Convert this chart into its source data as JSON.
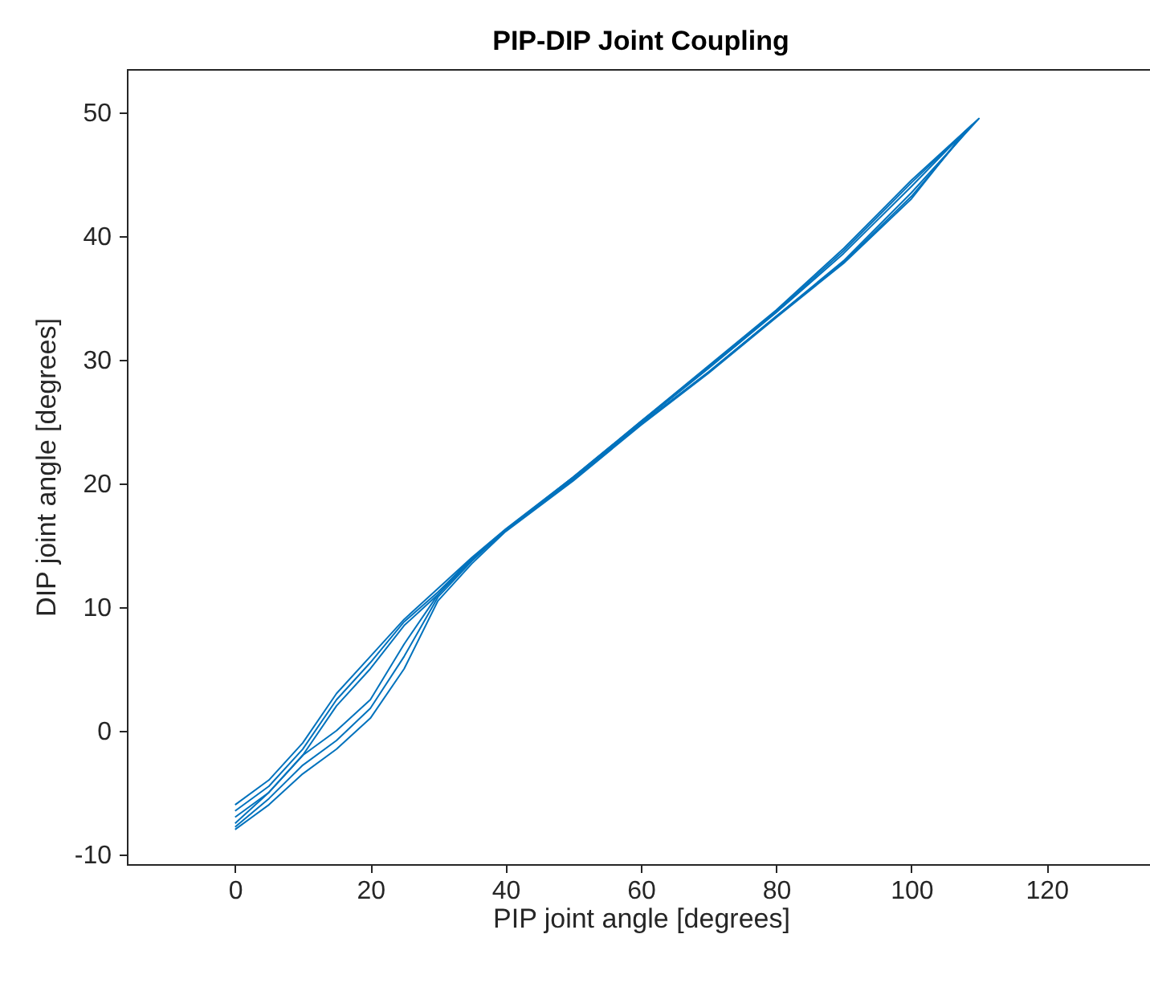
{
  "chart_data": {
    "type": "line",
    "title": "PIP-DIP Joint Coupling",
    "xlabel": "PIP joint angle [degrees]",
    "ylabel": "DIP joint angle [degrees]",
    "xlim": [
      -16,
      136
    ],
    "ylim": [
      -10.8,
      53.5
    ],
    "xticks": [
      0,
      20,
      40,
      60,
      80,
      100,
      120
    ],
    "yticks": [
      -10,
      0,
      10,
      20,
      30,
      40,
      50
    ],
    "grid": false,
    "legend": false,
    "marker": "none",
    "line_style": "solid",
    "series": [
      {
        "color": "#0072bd",
        "x": [
          0,
          5,
          10,
          15,
          20,
          25,
          30,
          35,
          40,
          50,
          60,
          70,
          80,
          90,
          100,
          110,
          100,
          90,
          80,
          70,
          60,
          50,
          40,
          35,
          30,
          25,
          20,
          15,
          10,
          5,
          0
        ],
        "values": [
          -6,
          -4,
          -1,
          3,
          6,
          9,
          11.5,
          14,
          16.3,
          20.5,
          25,
          29.5,
          34,
          39,
          44.5,
          49.5,
          43.5,
          38,
          33.5,
          29,
          24.8,
          20.3,
          16.2,
          14,
          11,
          7,
          2.5,
          0,
          -2,
          -5,
          -7.5
        ]
      },
      {
        "color": "#0072bd",
        "x": [
          0,
          5,
          10,
          15,
          20,
          25,
          30,
          35,
          40,
          50,
          60,
          70,
          80,
          90,
          100,
          108,
          100,
          90,
          80,
          70,
          60,
          50,
          40,
          35,
          30,
          25,
          20,
          15,
          10,
          5,
          0
        ],
        "values": [
          -7,
          -5,
          -2,
          2,
          5,
          8.5,
          11,
          13.8,
          16.2,
          20.4,
          24.9,
          29.3,
          33.8,
          38.6,
          44,
          48.5,
          43,
          37.8,
          33.4,
          28.9,
          24.7,
          20.2,
          16.1,
          13.5,
          10.5,
          5,
          1,
          -1.5,
          -3.5,
          -6,
          -8
        ]
      },
      {
        "color": "#0072bd",
        "x": [
          0,
          5,
          10,
          15,
          20,
          25,
          30,
          35,
          40,
          50,
          60,
          70,
          80,
          90,
          100,
          109,
          100,
          90,
          80,
          70,
          60,
          50,
          40,
          35,
          30,
          25,
          20,
          15,
          10,
          5,
          0
        ],
        "values": [
          -6.5,
          -4.5,
          -1.5,
          2.5,
          5.5,
          8.8,
          11.2,
          13.9,
          16.2,
          20.5,
          25,
          29.4,
          33.9,
          38.8,
          44.3,
          49,
          43.2,
          37.9,
          33.5,
          29,
          24.8,
          20.3,
          16.2,
          13.7,
          10.8,
          6,
          1.8,
          -0.8,
          -2.8,
          -5.5,
          -7.8
        ]
      }
    ]
  }
}
